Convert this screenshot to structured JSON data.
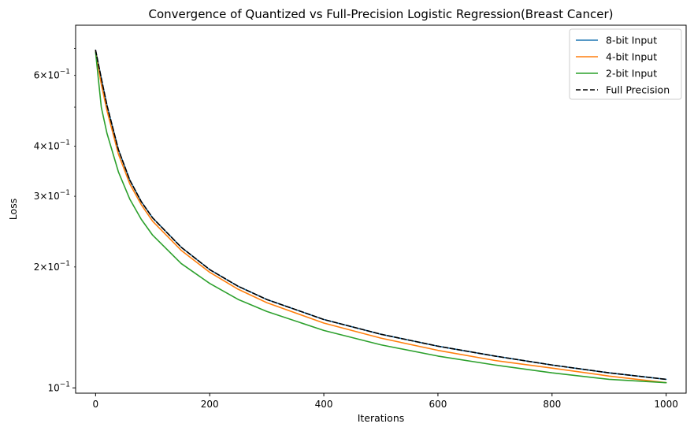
{
  "chart_data": {
    "type": "line",
    "title": "Convergence of Quantized vs Full-Precision Logistic Regression(Breast Cancer)",
    "xlabel": "Iterations",
    "ylabel": "Loss",
    "xlim": [
      -35,
      1035
    ],
    "ylim": [
      0.097,
      0.8
    ],
    "yscale": "log",
    "x_ticks": [
      {
        "value": 0,
        "label": "0"
      },
      {
        "value": 200,
        "label": "200"
      },
      {
        "value": 400,
        "label": "400"
      },
      {
        "value": 600,
        "label": "600"
      },
      {
        "value": 800,
        "label": "800"
      },
      {
        "value": 1000,
        "label": "1000"
      }
    ],
    "y_major_ticks": [
      {
        "value": 0.1,
        "base": "10",
        "exp": "−1"
      }
    ],
    "y_minor_ticks": [
      {
        "value": 0.2,
        "mant": "2",
        "base": "10",
        "exp": "−1"
      },
      {
        "value": 0.3,
        "mant": "3",
        "base": "10",
        "exp": "−1"
      },
      {
        "value": 0.4,
        "mant": "4",
        "base": "10",
        "exp": "−1"
      },
      {
        "value": 0.5,
        "mant": "",
        "base": "",
        "exp": ""
      },
      {
        "value": 0.6,
        "mant": "6",
        "base": "10",
        "exp": "−1"
      },
      {
        "value": 0.7,
        "mant": "",
        "base": "",
        "exp": ""
      }
    ],
    "legend_position": "top-right",
    "series": [
      {
        "name": "8-bit Input",
        "color": "#1f77b4",
        "dash": "solid",
        "x": [
          0,
          10,
          20,
          40,
          60,
          80,
          100,
          150,
          200,
          250,
          300,
          400,
          500,
          600,
          700,
          800,
          900,
          1000
        ],
        "values": [
          0.693,
          0.59,
          0.505,
          0.392,
          0.329,
          0.291,
          0.265,
          0.224,
          0.197,
          0.179,
          0.166,
          0.148,
          0.136,
          0.127,
          0.12,
          0.114,
          0.109,
          0.105
        ]
      },
      {
        "name": "4-bit Input",
        "color": "#ff7f0e",
        "dash": "solid",
        "x": [
          0,
          10,
          20,
          40,
          60,
          80,
          100,
          150,
          200,
          250,
          300,
          400,
          500,
          600,
          700,
          800,
          900,
          1000
        ],
        "values": [
          0.69,
          0.57,
          0.49,
          0.382,
          0.322,
          0.286,
          0.26,
          0.22,
          0.194,
          0.176,
          0.163,
          0.145,
          0.133,
          0.124,
          0.117,
          0.112,
          0.107,
          0.103
        ]
      },
      {
        "name": "2-bit Input",
        "color": "#2ca02c",
        "dash": "solid",
        "x": [
          0,
          10,
          20,
          40,
          60,
          80,
          100,
          150,
          200,
          250,
          300,
          400,
          500,
          600,
          700,
          800,
          900,
          1000
        ],
        "values": [
          0.685,
          0.5,
          0.43,
          0.345,
          0.295,
          0.263,
          0.24,
          0.204,
          0.182,
          0.166,
          0.155,
          0.139,
          0.128,
          0.12,
          0.114,
          0.109,
          0.105,
          0.103
        ]
      },
      {
        "name": "Full Precision",
        "color": "#000000",
        "dash": "dashed",
        "x": [
          0,
          10,
          20,
          40,
          60,
          80,
          100,
          150,
          200,
          250,
          300,
          400,
          500,
          600,
          700,
          800,
          900,
          1000
        ],
        "values": [
          0.693,
          0.59,
          0.505,
          0.392,
          0.329,
          0.291,
          0.265,
          0.224,
          0.197,
          0.179,
          0.166,
          0.148,
          0.136,
          0.127,
          0.12,
          0.114,
          0.109,
          0.105
        ]
      }
    ]
  }
}
